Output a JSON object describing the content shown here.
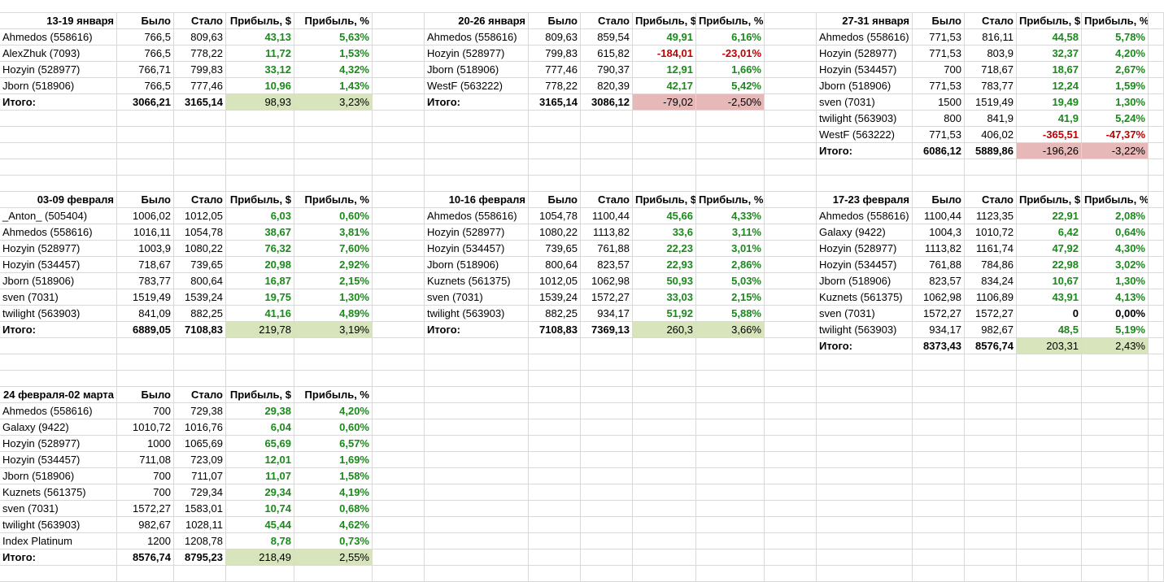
{
  "sheet": {
    "headers": {
      "was": "Было",
      "became": "Стало",
      "profit_usd": "Прибыль, $",
      "profit_pct": "Прибыль, %"
    },
    "total_label": "Итого:",
    "blocks": [
      {
        "period": "13-19 января",
        "rows": [
          {
            "name": "Ahmedos (558616)",
            "was": "766,5",
            "became": "809,63",
            "profit_usd": "43,13",
            "profit_pct": "5,63%",
            "sign": "pos"
          },
          {
            "name": "AlexZhuk (7093)",
            "was": "766,5",
            "became": "778,22",
            "profit_usd": "11,72",
            "profit_pct": "1,53%",
            "sign": "pos"
          },
          {
            "name": "Hozyin  (528977)",
            "was": "766,71",
            "became": "799,83",
            "profit_usd": "33,12",
            "profit_pct": "4,32%",
            "sign": "pos"
          },
          {
            "name": "Jborn (518906)",
            "was": "766,5",
            "became": "777,46",
            "profit_usd": "10,96",
            "profit_pct": "1,43%",
            "sign": "pos"
          }
        ],
        "total": {
          "was": "3066,21",
          "became": "3165,14",
          "profit_usd": "98,93",
          "profit_pct": "3,23%",
          "sign": "pos"
        }
      },
      {
        "period": "20-26 января",
        "rows": [
          {
            "name": "Ahmedos (558616)",
            "was": "809,63",
            "became": "859,54",
            "profit_usd": "49,91",
            "profit_pct": "6,16%",
            "sign": "pos"
          },
          {
            "name": "Hozyin  (528977)",
            "was": "799,83",
            "became": "615,82",
            "profit_usd": "-184,01",
            "profit_pct": "-23,01%",
            "sign": "neg"
          },
          {
            "name": "Jborn (518906)",
            "was": "777,46",
            "became": "790,37",
            "profit_usd": "12,91",
            "profit_pct": "1,66%",
            "sign": "pos"
          },
          {
            "name": "WestF (563222)",
            "was": "778,22",
            "became": "820,39",
            "profit_usd": "42,17",
            "profit_pct": "5,42%",
            "sign": "pos"
          }
        ],
        "total": {
          "was": "3165,14",
          "became": "3086,12",
          "profit_usd": "-79,02",
          "profit_pct": "-2,50%",
          "sign": "neg"
        }
      },
      {
        "period": "27-31 января",
        "rows": [
          {
            "name": "Ahmedos (558616)",
            "was": "771,53",
            "became": "816,11",
            "profit_usd": "44,58",
            "profit_pct": "5,78%",
            "sign": "pos"
          },
          {
            "name": "Hozyin  (528977)",
            "was": "771,53",
            "became": "803,9",
            "profit_usd": "32,37",
            "profit_pct": "4,20%",
            "sign": "pos"
          },
          {
            "name": "Hozyin (534457)",
            "was": "700",
            "became": "718,67",
            "profit_usd": "18,67",
            "profit_pct": "2,67%",
            "sign": "pos"
          },
          {
            "name": "Jborn (518906)",
            "was": "771,53",
            "became": "783,77",
            "profit_usd": "12,24",
            "profit_pct": "1,59%",
            "sign": "pos"
          },
          {
            "name": "sven (7031)",
            "was": "1500",
            "became": "1519,49",
            "profit_usd": "19,49",
            "profit_pct": "1,30%",
            "sign": "pos"
          },
          {
            "name": "twilight (563903)",
            "was": "800",
            "became": "841,9",
            "profit_usd": "41,9",
            "profit_pct": "5,24%",
            "sign": "pos"
          },
          {
            "name": "WestF (563222)",
            "was": "771,53",
            "became": "406,02",
            "profit_usd": "-365,51",
            "profit_pct": "-47,37%",
            "sign": "neg"
          }
        ],
        "total": {
          "was": "6086,12",
          "became": "5889,86",
          "profit_usd": "-196,26",
          "profit_pct": "-3,22%",
          "sign": "neg"
        }
      },
      {
        "period": "03-09 февраля",
        "rows": [
          {
            "name": "_Anton_  (505404)",
            "was": "1006,02",
            "became": "1012,05",
            "profit_usd": "6,03",
            "profit_pct": "0,60%",
            "sign": "pos"
          },
          {
            "name": "Ahmedos (558616)",
            "was": "1016,11",
            "became": "1054,78",
            "profit_usd": "38,67",
            "profit_pct": "3,81%",
            "sign": "pos"
          },
          {
            "name": "Hozyin  (528977)",
            "was": "1003,9",
            "became": "1080,22",
            "profit_usd": "76,32",
            "profit_pct": "7,60%",
            "sign": "pos"
          },
          {
            "name": "Hozyin (534457)",
            "was": "718,67",
            "became": "739,65",
            "profit_usd": "20,98",
            "profit_pct": "2,92%",
            "sign": "pos"
          },
          {
            "name": "Jborn (518906)",
            "was": "783,77",
            "became": "800,64",
            "profit_usd": "16,87",
            "profit_pct": "2,15%",
            "sign": "pos"
          },
          {
            "name": "sven (7031)",
            "was": "1519,49",
            "became": "1539,24",
            "profit_usd": "19,75",
            "profit_pct": "1,30%",
            "sign": "pos"
          },
          {
            "name": "twilight (563903)",
            "was": "841,09",
            "became": "882,25",
            "profit_usd": "41,16",
            "profit_pct": "4,89%",
            "sign": "pos"
          }
        ],
        "total": {
          "was": "6889,05",
          "became": "7108,83",
          "profit_usd": "219,78",
          "profit_pct": "3,19%",
          "sign": "pos"
        }
      },
      {
        "period": "10-16 февраля",
        "rows": [
          {
            "name": "Ahmedos (558616)",
            "was": "1054,78",
            "became": "1100,44",
            "profit_usd": "45,66",
            "profit_pct": "4,33%",
            "sign": "pos"
          },
          {
            "name": "Hozyin  (528977)",
            "was": "1080,22",
            "became": "1113,82",
            "profit_usd": "33,6",
            "profit_pct": "3,11%",
            "sign": "pos"
          },
          {
            "name": "Hozyin (534457)",
            "was": "739,65",
            "became": "761,88",
            "profit_usd": "22,23",
            "profit_pct": "3,01%",
            "sign": "pos"
          },
          {
            "name": "Jborn (518906)",
            "was": "800,64",
            "became": "823,57",
            "profit_usd": "22,93",
            "profit_pct": "2,86%",
            "sign": "pos"
          },
          {
            "name": "Kuznets (561375)",
            "was": "1012,05",
            "became": "1062,98",
            "profit_usd": "50,93",
            "profit_pct": "5,03%",
            "sign": "pos"
          },
          {
            "name": "sven (7031)",
            "was": "1539,24",
            "became": "1572,27",
            "profit_usd": "33,03",
            "profit_pct": "2,15%",
            "sign": "pos"
          },
          {
            "name": "twilight (563903)",
            "was": "882,25",
            "became": "934,17",
            "profit_usd": "51,92",
            "profit_pct": "5,88%",
            "sign": "pos"
          }
        ],
        "total": {
          "was": "7108,83",
          "became": "7369,13",
          "profit_usd": "260,3",
          "profit_pct": "3,66%",
          "sign": "pos"
        }
      },
      {
        "period": "17-23 февраля",
        "rows": [
          {
            "name": "Ahmedos (558616)",
            "was": "1100,44",
            "became": "1123,35",
            "profit_usd": "22,91",
            "profit_pct": "2,08%",
            "sign": "pos"
          },
          {
            "name": "Galaxy (9422)",
            "was": "1004,3",
            "became": "1010,72",
            "profit_usd": "6,42",
            "profit_pct": "0,64%",
            "sign": "pos"
          },
          {
            "name": "Hozyin  (528977)",
            "was": "1113,82",
            "became": "1161,74",
            "profit_usd": "47,92",
            "profit_pct": "4,30%",
            "sign": "pos"
          },
          {
            "name": "Hozyin (534457)",
            "was": "761,88",
            "became": "784,86",
            "profit_usd": "22,98",
            "profit_pct": "3,02%",
            "sign": "pos"
          },
          {
            "name": "Jborn (518906)",
            "was": "823,57",
            "became": "834,24",
            "profit_usd": "10,67",
            "profit_pct": "1,30%",
            "sign": "pos"
          },
          {
            "name": "Kuznets (561375)",
            "was": "1062,98",
            "became": "1106,89",
            "profit_usd": "43,91",
            "profit_pct": "4,13%",
            "sign": "pos"
          },
          {
            "name": "sven (7031)",
            "was": "1572,27",
            "became": "1572,27",
            "profit_usd": "0",
            "profit_pct": "0,00%",
            "sign": "zero"
          },
          {
            "name": "twilight (563903)",
            "was": "934,17",
            "became": "982,67",
            "profit_usd": "48,5",
            "profit_pct": "5,19%",
            "sign": "pos"
          }
        ],
        "total": {
          "was": "8373,43",
          "became": "8576,74",
          "profit_usd": "203,31",
          "profit_pct": "2,43%",
          "sign": "pos"
        }
      },
      {
        "period": "24 февраля-02 марта",
        "rows": [
          {
            "name": "Ahmedos (558616)",
            "was": "700",
            "became": "729,38",
            "profit_usd": "29,38",
            "profit_pct": "4,20%",
            "sign": "pos"
          },
          {
            "name": "Galaxy (9422)",
            "was": "1010,72",
            "became": "1016,76",
            "profit_usd": "6,04",
            "profit_pct": "0,60%",
            "sign": "pos"
          },
          {
            "name": "Hozyin  (528977)",
            "was": "1000",
            "became": "1065,69",
            "profit_usd": "65,69",
            "profit_pct": "6,57%",
            "sign": "pos"
          },
          {
            "name": "Hozyin (534457)",
            "was": "711,08",
            "became": "723,09",
            "profit_usd": "12,01",
            "profit_pct": "1,69%",
            "sign": "pos"
          },
          {
            "name": "Jborn (518906)",
            "was": "700",
            "became": "711,07",
            "profit_usd": "11,07",
            "profit_pct": "1,58%",
            "sign": "pos"
          },
          {
            "name": "Kuznets (561375)",
            "was": "700",
            "became": "729,34",
            "profit_usd": "29,34",
            "profit_pct": "4,19%",
            "sign": "pos"
          },
          {
            "name": "sven (7031)",
            "was": "1572,27",
            "became": "1583,01",
            "profit_usd": "10,74",
            "profit_pct": "0,68%",
            "sign": "pos"
          },
          {
            "name": "twilight (563903)",
            "was": "982,67",
            "became": "1028,11",
            "profit_usd": "45,44",
            "profit_pct": "4,62%",
            "sign": "pos"
          },
          {
            "name": "Index Platinum",
            "was": "1200",
            "became": "1208,78",
            "profit_usd": "8,78",
            "profit_pct": "0,73%",
            "sign": "pos"
          }
        ],
        "total": {
          "was": "8576,74",
          "became": "8795,23",
          "profit_usd": "218,49",
          "profit_pct": "2,55%",
          "sign": "pos"
        }
      }
    ]
  }
}
